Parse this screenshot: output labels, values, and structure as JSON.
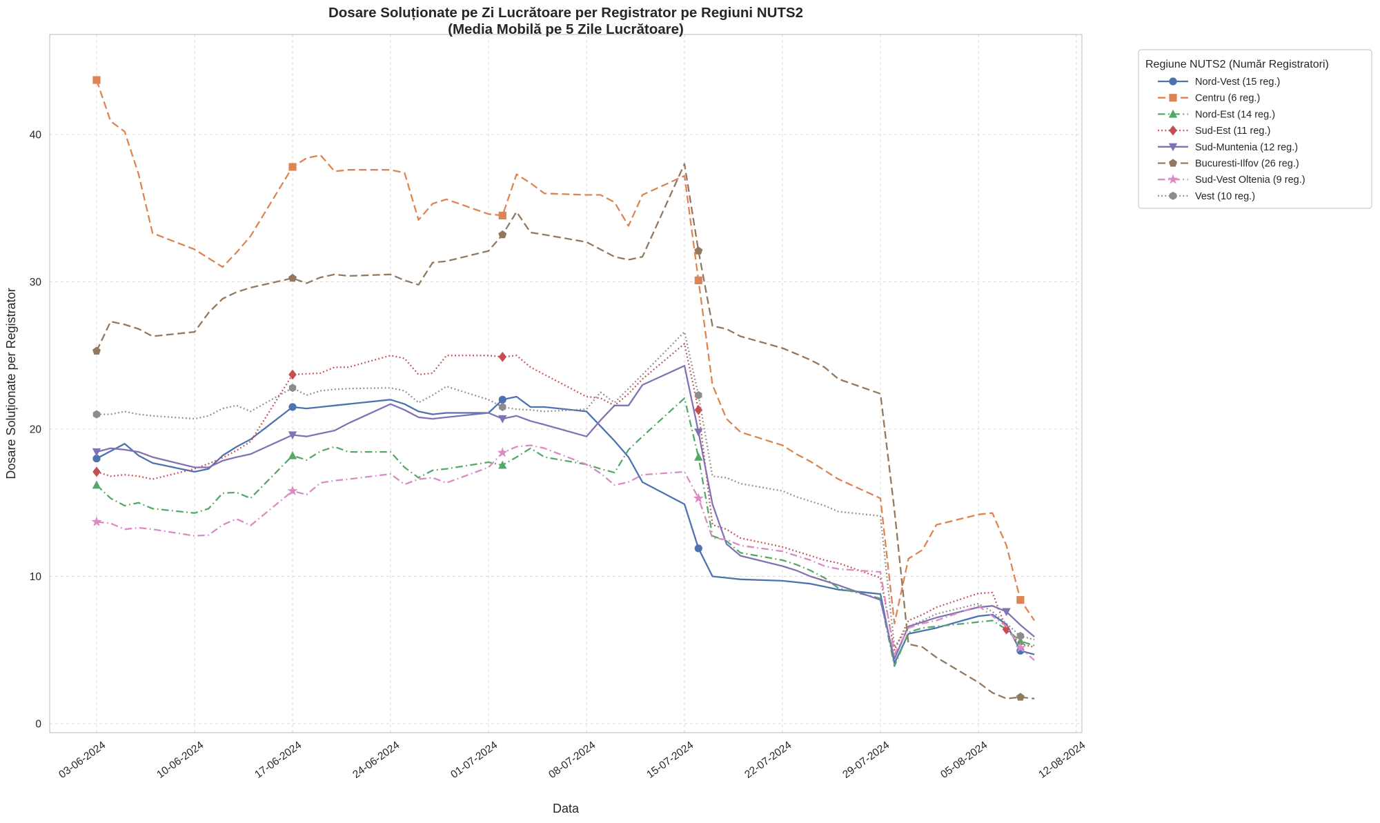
{
  "chart_data": {
    "type": "line",
    "title": "Dosare Soluționate pe Zi Lucrătoare per Registrator pe Regiuni NUTS2",
    "subtitle": "(Media Mobilă pe 5 Zile Lucrătoare)",
    "xlabel": "Data",
    "ylabel": "Dosare Soluționate per Registrator",
    "legend_title": "Regiune NUTS2 (Număr Registratori)",
    "legend_position": "upper right, outside plot",
    "grid": "on, light gray dashed",
    "ylim": [
      0,
      46.8
    ],
    "yticks": [
      0,
      10,
      20,
      30,
      40
    ],
    "xticks": [
      "03-06-2024",
      "10-06-2024",
      "17-06-2024",
      "24-06-2024",
      "01-07-2024",
      "08-07-2024",
      "15-07-2024",
      "22-07-2024",
      "29-07-2024",
      "05-08-2024",
      "12-08-2024"
    ],
    "x": [
      "03-06",
      "04-06",
      "05-06",
      "06-06",
      "07-06",
      "10-06",
      "11-06",
      "12-06",
      "13-06",
      "14-06",
      "17-06",
      "18-06",
      "19-06",
      "20-06",
      "21-06",
      "24-06",
      "25-06",
      "26-06",
      "27-06",
      "28-06",
      "01-07",
      "02-07",
      "03-07",
      "04-07",
      "05-07",
      "08-07",
      "09-07",
      "10-07",
      "11-07",
      "12-07",
      "15-07",
      "16-07",
      "17-07",
      "18-07",
      "19-07",
      "22-07",
      "23-07",
      "24-07",
      "25-07",
      "26-07",
      "29-07",
      "30-07",
      "31-07",
      "01-08",
      "02-08",
      "05-08",
      "06-08",
      "07-08",
      "08-08",
      "09-08"
    ],
    "series": [
      {
        "name": "Nord-Vest (15 reg.)",
        "color": "#4C72B0",
        "dash": "solid",
        "marker": "circle",
        "marker_dates": [
          "03-06",
          "17-06",
          "02-07",
          "16-07",
          "08-08"
        ],
        "values": [
          18.0,
          18.5,
          19.0,
          18.2,
          17.7,
          17.1,
          17.3,
          18.2,
          18.8,
          19.3,
          21.5,
          21.4,
          21.5,
          21.6,
          21.7,
          22.0,
          21.7,
          21.2,
          21.0,
          21.1,
          21.1,
          22.0,
          22.2,
          21.5,
          21.5,
          21.2,
          20.2,
          19.2,
          18.1,
          16.4,
          14.9,
          11.9,
          10.0,
          9.9,
          9.8,
          9.7,
          9.6,
          9.5,
          9.3,
          9.1,
          8.8,
          4.1,
          6.1,
          6.3,
          6.5,
          7.3,
          7.4,
          6.75,
          4.95,
          4.7
        ]
      },
      {
        "name": "Centru (6 reg.)",
        "color": "#DD8452",
        "dash": "dashed",
        "marker": "square",
        "marker_dates": [
          "03-06",
          "17-06",
          "02-07",
          "16-07",
          "08-08"
        ],
        "values": [
          43.7,
          40.9,
          40.2,
          37.3,
          33.3,
          32.2,
          31.6,
          31.0,
          32.0,
          33.1,
          37.8,
          38.4,
          38.6,
          37.5,
          37.6,
          37.6,
          37.4,
          34.2,
          35.3,
          35.6,
          34.6,
          34.5,
          37.3,
          36.7,
          36.0,
          35.9,
          35.9,
          35.4,
          33.8,
          35.9,
          37.2,
          30.1,
          23.0,
          20.7,
          19.8,
          18.9,
          18.3,
          17.8,
          17.2,
          16.6,
          15.3,
          6.8,
          11.2,
          11.8,
          13.5,
          14.2,
          14.3,
          12.1,
          8.4,
          7.0
        ]
      },
      {
        "name": "Nord-Est (14 reg.)",
        "color": "#55A868",
        "dash": "dashdot",
        "marker": "triangle-up",
        "marker_dates": [
          "03-06",
          "17-06",
          "02-07",
          "16-07",
          "08-08"
        ],
        "values": [
          16.2,
          15.3,
          14.8,
          15.0,
          14.6,
          14.3,
          14.6,
          15.65,
          15.7,
          15.3,
          18.2,
          17.9,
          18.5,
          18.8,
          18.45,
          18.45,
          17.4,
          16.7,
          17.2,
          17.3,
          17.75,
          17.55,
          18.1,
          18.7,
          18.1,
          17.6,
          17.3,
          17.05,
          18.6,
          19.5,
          22.1,
          18.1,
          12.75,
          12.4,
          11.6,
          11.1,
          10.8,
          10.4,
          9.9,
          9.2,
          8.5,
          3.9,
          6.2,
          6.5,
          6.6,
          6.9,
          7.0,
          6.4,
          5.6,
          5.3
        ]
      },
      {
        "name": "Sud-Est (11 reg.)",
        "color": "#C44E52",
        "dash": "dotted",
        "marker": "diamond",
        "marker_dates": [
          "03-06",
          "17-06",
          "02-07",
          "16-07",
          "07-08"
        ],
        "values": [
          17.1,
          16.8,
          16.9,
          16.8,
          16.6,
          17.3,
          17.65,
          18.05,
          18.55,
          19.15,
          23.7,
          23.75,
          23.8,
          24.2,
          24.2,
          25.0,
          24.8,
          23.7,
          23.8,
          25.0,
          25.0,
          24.9,
          25.0,
          24.2,
          23.7,
          22.2,
          22.1,
          21.6,
          22.4,
          23.4,
          25.8,
          21.3,
          13.5,
          13.2,
          12.6,
          12.0,
          11.7,
          11.4,
          11.1,
          10.9,
          9.9,
          5.0,
          7.0,
          7.4,
          7.9,
          8.85,
          8.9,
          6.4,
          5.4,
          5.2
        ]
      },
      {
        "name": "Sud-Muntenia (12 reg.)",
        "color": "#8172B3",
        "dash": "solid",
        "marker": "triangle-down",
        "marker_dates": [
          "03-06",
          "17-06",
          "02-07",
          "16-07",
          "07-08"
        ],
        "values": [
          18.45,
          18.7,
          18.6,
          18.45,
          18.1,
          17.4,
          17.4,
          17.85,
          18.1,
          18.3,
          19.6,
          19.5,
          19.7,
          19.9,
          20.4,
          21.7,
          21.3,
          20.8,
          20.7,
          20.8,
          21.1,
          20.7,
          20.9,
          20.55,
          20.3,
          19.5,
          20.6,
          21.6,
          21.6,
          23.0,
          24.3,
          19.8,
          14.9,
          12.2,
          11.4,
          10.7,
          10.4,
          10.0,
          9.7,
          9.4,
          8.4,
          4.4,
          6.6,
          6.9,
          7.2,
          7.9,
          8.0,
          7.6,
          6.7,
          5.9
        ]
      },
      {
        "name": "Bucuresti-Ilfov (26 reg.)",
        "color": "#937860",
        "dash": "dashed",
        "marker": "pentagon",
        "marker_dates": [
          "03-06",
          "17-06",
          "02-07",
          "16-07",
          "08-08"
        ],
        "values": [
          25.3,
          27.3,
          27.1,
          26.8,
          26.3,
          26.6,
          27.9,
          28.85,
          29.3,
          29.6,
          30.25,
          29.9,
          30.3,
          30.5,
          30.4,
          30.5,
          30.1,
          29.8,
          31.3,
          31.4,
          32.1,
          33.2,
          34.75,
          33.35,
          33.2,
          32.7,
          32.2,
          31.7,
          31.5,
          31.7,
          38.0,
          32.1,
          27.0,
          26.8,
          26.3,
          25.5,
          25.1,
          24.7,
          24.2,
          23.4,
          22.4,
          14.5,
          5.4,
          5.2,
          4.5,
          2.8,
          2.1,
          1.7,
          1.8,
          1.7
        ]
      },
      {
        "name": "Sud-Vest Oltenia (9 reg.)",
        "color": "#DA8BC3",
        "dash": "dashdot",
        "marker": "star",
        "marker_dates": [
          "03-06",
          "17-06",
          "02-07",
          "16-07",
          "08-08"
        ],
        "values": [
          13.7,
          13.6,
          13.2,
          13.3,
          13.2,
          12.75,
          12.8,
          13.5,
          13.9,
          13.45,
          15.8,
          15.55,
          16.35,
          16.5,
          16.6,
          16.95,
          16.25,
          16.6,
          16.7,
          16.35,
          17.4,
          18.4,
          18.8,
          18.9,
          18.7,
          17.6,
          17.0,
          16.2,
          16.4,
          16.9,
          17.1,
          15.3,
          12.6,
          12.5,
          12.1,
          11.7,
          11.4,
          11.1,
          10.7,
          10.5,
          10.3,
          4.7,
          6.5,
          6.8,
          7.0,
          8.0,
          7.3,
          6.6,
          5.15,
          4.3
        ]
      },
      {
        "name": "Vest (10 reg.)",
        "color": "#8C8C8C",
        "dash": "dotted",
        "marker": "hexagon",
        "marker_dates": [
          "03-06",
          "17-06",
          "02-07",
          "16-07",
          "08-08"
        ],
        "values": [
          21.0,
          21.0,
          21.2,
          21.0,
          20.9,
          20.7,
          20.9,
          21.4,
          21.6,
          21.2,
          22.8,
          22.3,
          22.6,
          22.7,
          22.75,
          22.8,
          22.6,
          21.8,
          22.3,
          22.9,
          22.0,
          21.5,
          21.35,
          21.3,
          21.2,
          21.35,
          22.5,
          21.8,
          22.75,
          23.7,
          26.6,
          22.3,
          16.8,
          16.7,
          16.3,
          15.8,
          15.4,
          15.1,
          14.8,
          14.4,
          14.1,
          5.2,
          6.6,
          7.0,
          7.45,
          8.15,
          7.6,
          6.8,
          5.95,
          5.7
        ]
      }
    ]
  }
}
